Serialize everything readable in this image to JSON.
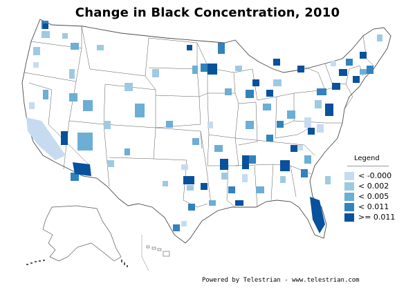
{
  "title": "Change in Black Concentration, 2010",
  "legend": {
    "title": "Legend",
    "items": [
      {
        "label": "< -0.000",
        "color": "#c6dbef"
      },
      {
        "label": "< 0.002",
        "color": "#9ecae1"
      },
      {
        "label": "< 0.005",
        "color": "#6baed6"
      },
      {
        "label": "< 0.011",
        "color": "#3182bd"
      },
      {
        "label": ">= 0.011",
        "color": "#08519c"
      }
    ]
  },
  "footer": "Powered by Telestrian - www.telestrian.com"
}
